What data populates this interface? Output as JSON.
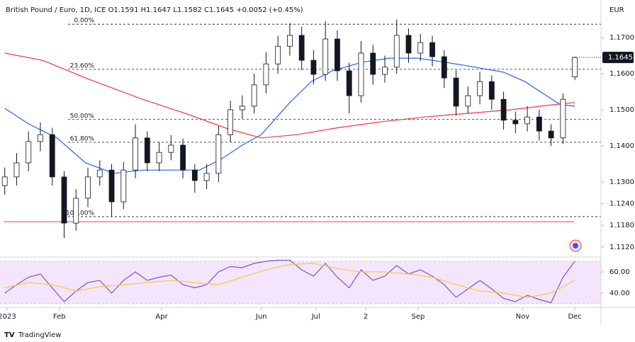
{
  "header": "British Pound / Euro, 1D, ICE  O1.1591 H1.1647 L1.1582 C1.1645 +0.0052 (+0.45%)",
  "currency": "EUR",
  "brand": "TradingView",
  "chart_data": [
    {
      "type": "candlestick",
      "xlim": [
        -2,
        251
      ],
      "ylim": [
        1.1098,
        1.1804
      ],
      "yticks": [
        {
          "value": 1.17,
          "label": "1.1700"
        },
        {
          "value": 1.16,
          "label": "1.1600"
        },
        {
          "value": 1.15,
          "label": "1.1500"
        },
        {
          "value": 1.14,
          "label": "1.1400"
        },
        {
          "value": 1.13,
          "label": "1.1300"
        },
        {
          "value": 1.124,
          "label": "1.1240"
        },
        {
          "value": 1.118,
          "label": "1.1180"
        },
        {
          "value": 1.112,
          "label": "1.1120"
        }
      ],
      "price_label": {
        "value": 1.1645,
        "label": "1.1645"
      },
      "x": [
        0,
        5,
        10,
        15,
        20,
        25,
        30,
        35,
        40,
        45,
        50,
        55,
        60,
        65,
        70,
        75,
        80,
        85,
        90,
        95,
        100,
        105,
        110,
        115,
        120,
        125,
        130,
        135,
        140,
        145,
        150,
        155,
        160,
        165,
        170,
        175,
        180,
        185,
        190,
        195,
        200,
        205,
        210,
        215,
        220,
        225,
        230,
        235,
        240
      ],
      "open": [
        1.129,
        1.1314,
        1.1353,
        1.1412,
        1.1431,
        1.1314,
        1.1186,
        1.1255,
        1.1314,
        1.1333,
        1.1245,
        1.1333,
        1.1422,
        1.1353,
        1.1382,
        1.1402,
        1.1333,
        1.1304,
        1.1324,
        1.1431,
        1.15,
        1.151,
        1.1569,
        1.1627,
        1.1676,
        1.1706,
        1.1637,
        1.1598,
        1.1696,
        1.1608,
        1.1539,
        1.1657,
        1.1598,
        1.1618,
        1.1706,
        1.1657,
        1.1686,
        1.1647,
        1.1588,
        1.151,
        1.1539,
        1.1578,
        1.1529,
        1.1471,
        1.1461,
        1.148,
        1.1441,
        1.1422,
        1.1591
      ],
      "high": [
        1.134,
        1.138,
        1.144,
        1.1465,
        1.145,
        1.133,
        1.128,
        1.134,
        1.136,
        1.135,
        1.1355,
        1.146,
        1.144,
        1.141,
        1.143,
        1.142,
        1.135,
        1.135,
        1.1455,
        1.1525,
        1.154,
        1.16,
        1.166,
        1.1705,
        1.174,
        1.173,
        1.1665,
        1.1745,
        1.172,
        1.163,
        1.169,
        1.168,
        1.165,
        1.175,
        1.1725,
        1.171,
        1.1705,
        1.1665,
        1.161,
        1.1565,
        1.1605,
        1.1595,
        1.155,
        1.1495,
        1.151,
        1.15,
        1.146,
        1.1545,
        1.1647
      ],
      "low": [
        1.1265,
        1.129,
        1.133,
        1.1385,
        1.129,
        1.1145,
        1.1165,
        1.123,
        1.129,
        1.1205,
        1.1225,
        1.131,
        1.133,
        1.133,
        1.136,
        1.131,
        1.127,
        1.128,
        1.13,
        1.141,
        1.1475,
        1.149,
        1.1545,
        1.16,
        1.165,
        1.161,
        1.157,
        1.158,
        1.158,
        1.149,
        1.152,
        1.157,
        1.1575,
        1.16,
        1.163,
        1.1635,
        1.162,
        1.156,
        1.1485,
        1.149,
        1.1515,
        1.15,
        1.1445,
        1.1435,
        1.144,
        1.1415,
        1.14,
        1.1405,
        1.1582
      ],
      "close": [
        1.1314,
        1.1353,
        1.1412,
        1.1431,
        1.1314,
        1.1186,
        1.1255,
        1.1314,
        1.1333,
        1.1245,
        1.1333,
        1.1422,
        1.1353,
        1.1382,
        1.1402,
        1.1333,
        1.1304,
        1.1324,
        1.1431,
        1.15,
        1.151,
        1.1569,
        1.1627,
        1.1676,
        1.1706,
        1.1637,
        1.1598,
        1.1696,
        1.1608,
        1.1539,
        1.1657,
        1.1598,
        1.1618,
        1.1706,
        1.1657,
        1.1686,
        1.1647,
        1.1588,
        1.151,
        1.1539,
        1.1578,
        1.1529,
        1.1471,
        1.1461,
        1.148,
        1.1441,
        1.1422,
        1.1529,
        1.1645
      ],
      "up_color": "#ffffff",
      "down_color": "#131722",
      "edge_color": "#131722",
      "series": [
        {
          "color": "#2962ff",
          "x": [
            0,
            10,
            22,
            34,
            46,
            58,
            70,
            82,
            91,
            100,
            108,
            120,
            129,
            138,
            150,
            162,
            174,
            186,
            198,
            210,
            219,
            228,
            234,
            240
          ],
          "values": [
            1.1504,
            1.1461,
            1.1422,
            1.1353,
            1.1324,
            1.1333,
            1.1333,
            1.1333,
            1.1363,
            1.1402,
            1.1431,
            1.152,
            1.1578,
            1.1608,
            1.1631,
            1.1643,
            1.1643,
            1.1631,
            1.1618,
            1.1604,
            1.1578,
            1.1539,
            1.1514,
            1.151
          ]
        },
        {
          "color": "#f23645",
          "x": [
            0,
            16,
            34,
            58,
            76,
            94,
            108,
            123,
            141,
            159,
            177,
            195,
            213,
            231,
            240
          ],
          "values": [
            1.1657,
            1.1637,
            1.1588,
            1.1529,
            1.149,
            1.1447,
            1.1422,
            1.1431,
            1.1451,
            1.1467,
            1.148,
            1.149,
            1.15,
            1.1514,
            1.152
          ]
        }
      ],
      "fib_levels": [
        {
          "label": "0.00%",
          "value": 1.1737
        },
        {
          "label": "23.60%",
          "value": 1.1612
        },
        {
          "label": "50.00%",
          "value": 1.1473
        },
        {
          "label": "61.80%",
          "value": 1.141
        },
        {
          "label": "100.00%",
          "value": 1.1204
        }
      ],
      "support_line": {
        "value": 1.119,
        "color": "#f23645"
      }
    },
    {
      "type": "line",
      "xlim": [
        -2,
        251
      ],
      "ylim": [
        27.3,
        72.7
      ],
      "yticks": [
        {
          "value": 60,
          "label": "60.00"
        },
        {
          "value": 40,
          "label": "40.00"
        }
      ],
      "band": [
        30,
        70
      ],
      "band_color": "#f3e5fb",
      "xticks": [
        {
          "value": 1,
          "label": "2023"
        },
        {
          "value": 23,
          "label": "Feb"
        },
        {
          "value": 66,
          "label": "Apr"
        },
        {
          "value": 108,
          "label": "Jun"
        },
        {
          "value": 131,
          "label": "Jul"
        },
        {
          "value": 152,
          "label": "2"
        },
        {
          "value": 174,
          "label": "Sep"
        },
        {
          "value": 218,
          "label": "Nov"
        },
        {
          "value": 240,
          "label": "Dec"
        }
      ],
      "series": [
        {
          "color": "#7e57c2",
          "x": [
            0,
            5,
            10,
            15,
            20,
            25,
            30,
            35,
            40,
            45,
            50,
            55,
            60,
            65,
            70,
            75,
            80,
            85,
            90,
            95,
            100,
            105,
            110,
            115,
            120,
            125,
            130,
            135,
            140,
            145,
            150,
            155,
            160,
            165,
            170,
            175,
            180,
            185,
            190,
            195,
            200,
            205,
            210,
            215,
            220,
            225,
            230,
            235,
            240
          ],
          "values": [
            40,
            48,
            55,
            58,
            45,
            32,
            42,
            50,
            52,
            40,
            52,
            60,
            52,
            55,
            57,
            48,
            45,
            48,
            60,
            65,
            64,
            68,
            70,
            71,
            71,
            62,
            56,
            68,
            55,
            45,
            62,
            52,
            56,
            66,
            58,
            62,
            56,
            48,
            36,
            44,
            52,
            44,
            35,
            32,
            38,
            34,
            31,
            55,
            70
          ]
        },
        {
          "color": "#f7c948",
          "x": [
            0,
            10,
            20,
            30,
            40,
            50,
            60,
            70,
            80,
            90,
            100,
            110,
            120,
            130,
            140,
            150,
            160,
            170,
            180,
            190,
            200,
            210,
            220,
            230,
            240
          ],
          "values": [
            45,
            50,
            48,
            42,
            46,
            48,
            50,
            52,
            50,
            48,
            55,
            62,
            67,
            68,
            63,
            60,
            60,
            58,
            55,
            48,
            42,
            40,
            36,
            40,
            52
          ]
        }
      ]
    }
  ]
}
